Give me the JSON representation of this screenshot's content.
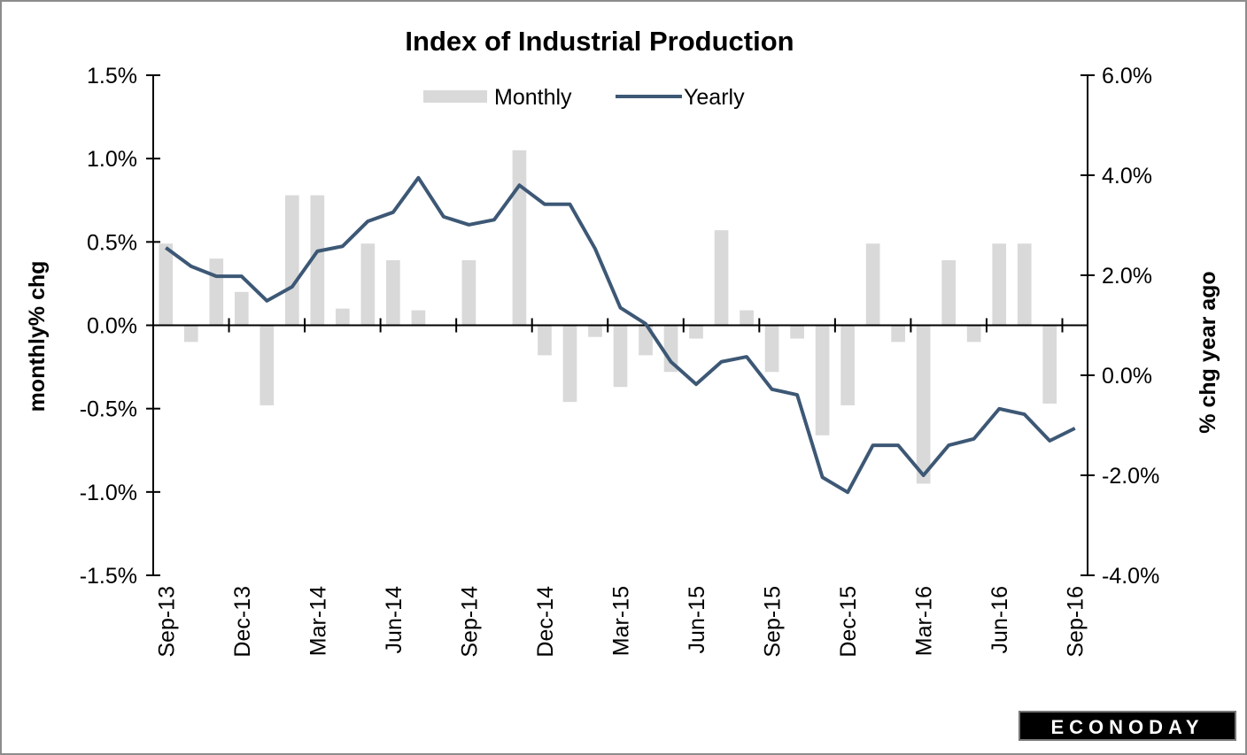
{
  "chart_data": {
    "type": "bar+line",
    "title": "Index of Industrial Production",
    "ylabel_left": "monthly% chg",
    "ylabel_right": "% chg year ago",
    "ylim_left": [
      -1.5,
      1.5
    ],
    "ylim_right": [
      -4.0,
      6.0
    ],
    "yticks_left": [
      "-1.5%",
      "-1.0%",
      "-0.5%",
      "0.0%",
      "0.5%",
      "1.0%",
      "1.5%"
    ],
    "yticks_right": [
      "-4.0%",
      "-2.0%",
      "0.0%",
      "2.0%",
      "4.0%",
      "6.0%"
    ],
    "legend": [
      "Monthly",
      "Yearly"
    ],
    "legend_placement": "top-center",
    "grid": false,
    "categories": [
      "Sep-13",
      "Oct-13",
      "Nov-13",
      "Dec-13",
      "Jan-14",
      "Feb-14",
      "Mar-14",
      "Apr-14",
      "May-14",
      "Jun-14",
      "Jul-14",
      "Aug-14",
      "Sep-14",
      "Oct-14",
      "Nov-14",
      "Dec-14",
      "Jan-15",
      "Feb-15",
      "Mar-15",
      "Apr-15",
      "May-15",
      "Jun-15",
      "Jul-15",
      "Aug-15",
      "Sep-15",
      "Oct-15",
      "Nov-15",
      "Dec-15",
      "Jan-16",
      "Feb-16",
      "Mar-16",
      "Apr-16",
      "May-16",
      "Jun-16",
      "Jul-16",
      "Aug-16",
      "Sep-16"
    ],
    "xtick_labels": [
      "Sep-13",
      "Dec-13",
      "Mar-14",
      "Jun-14",
      "Sep-14",
      "Dec-14",
      "Mar-15",
      "Jun-15",
      "Sep-15",
      "Dec-15",
      "Mar-16",
      "Jun-16",
      "Sep-16"
    ],
    "series": [
      {
        "name": "Monthly",
        "type": "bar",
        "axis": "left",
        "color": "#d9d9d9",
        "values": [
          0.49,
          -0.1,
          0.4,
          0.2,
          -0.48,
          0.78,
          0.78,
          0.1,
          0.49,
          0.39,
          0.09,
          0.0,
          0.39,
          0.0,
          1.05,
          -0.18,
          -0.46,
          -0.07,
          -0.37,
          -0.18,
          -0.28,
          -0.08,
          0.57,
          0.09,
          -0.28,
          -0.08,
          -0.66,
          -0.48,
          0.49,
          -0.1,
          -0.95,
          0.39,
          -0.1,
          0.49,
          0.49,
          -0.47,
          0.0
        ]
      },
      {
        "name": "Yearly",
        "type": "line",
        "axis": "right",
        "color": "#3d5875",
        "values": [
          2.55,
          2.18,
          1.98,
          1.98,
          1.49,
          1.77,
          2.48,
          2.58,
          3.08,
          3.26,
          3.95,
          3.17,
          3.01,
          3.11,
          3.8,
          3.42,
          3.42,
          2.53,
          1.35,
          1.03,
          0.27,
          -0.18,
          0.27,
          0.37,
          -0.28,
          -0.39,
          -2.04,
          -2.34,
          -1.4,
          -1.4,
          -2.0,
          -1.4,
          -1.27,
          -0.67,
          -0.78,
          -1.31,
          -1.06
        ]
      }
    ]
  },
  "logo": "ECONODAY"
}
